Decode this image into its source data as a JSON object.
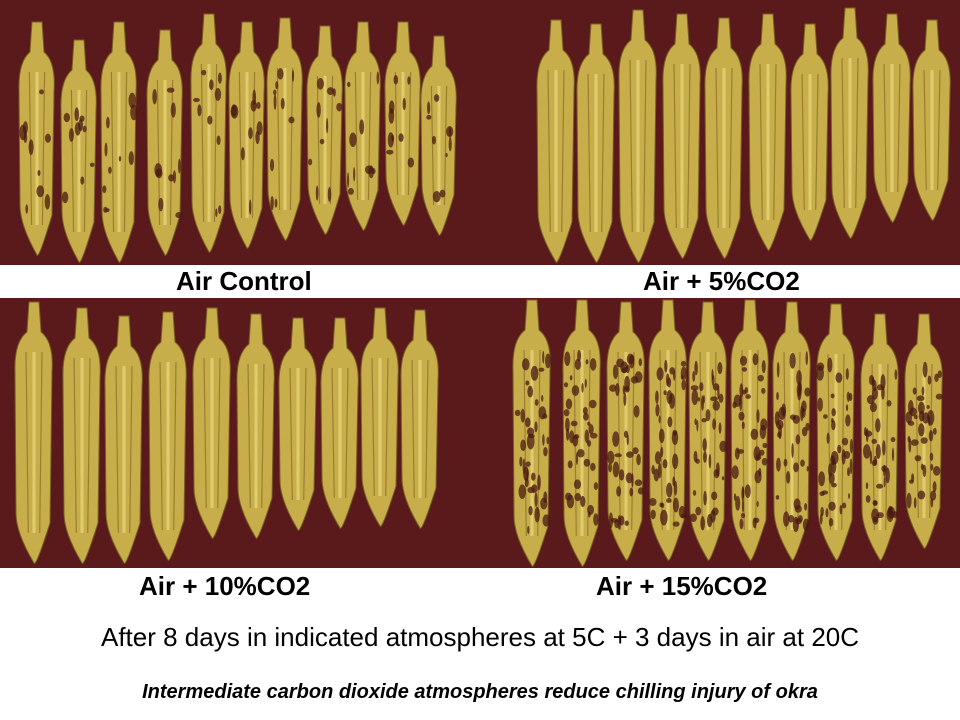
{
  "panels": [
    {
      "id": "air-control",
      "label": "Air Control"
    },
    {
      "id": "air-5co2",
      "label": "Air + 5%CO2"
    },
    {
      "id": "air-10co2",
      "label": "Air + 10%CO2"
    },
    {
      "id": "air-15co2",
      "label": "Air + 15%CO2"
    }
  ],
  "caption": {
    "main": "After 8 days in indicated atmospheres at 5C + 3 days in air at 20C",
    "sub": "Intermediate carbon dioxide atmospheres reduce chilling injury of okra"
  },
  "colors": {
    "background": "#5a1a1c",
    "okra_body": "#c8ae4a",
    "okra_highlight": "#e0cc6e",
    "injury_spots": "#4a1a12"
  }
}
